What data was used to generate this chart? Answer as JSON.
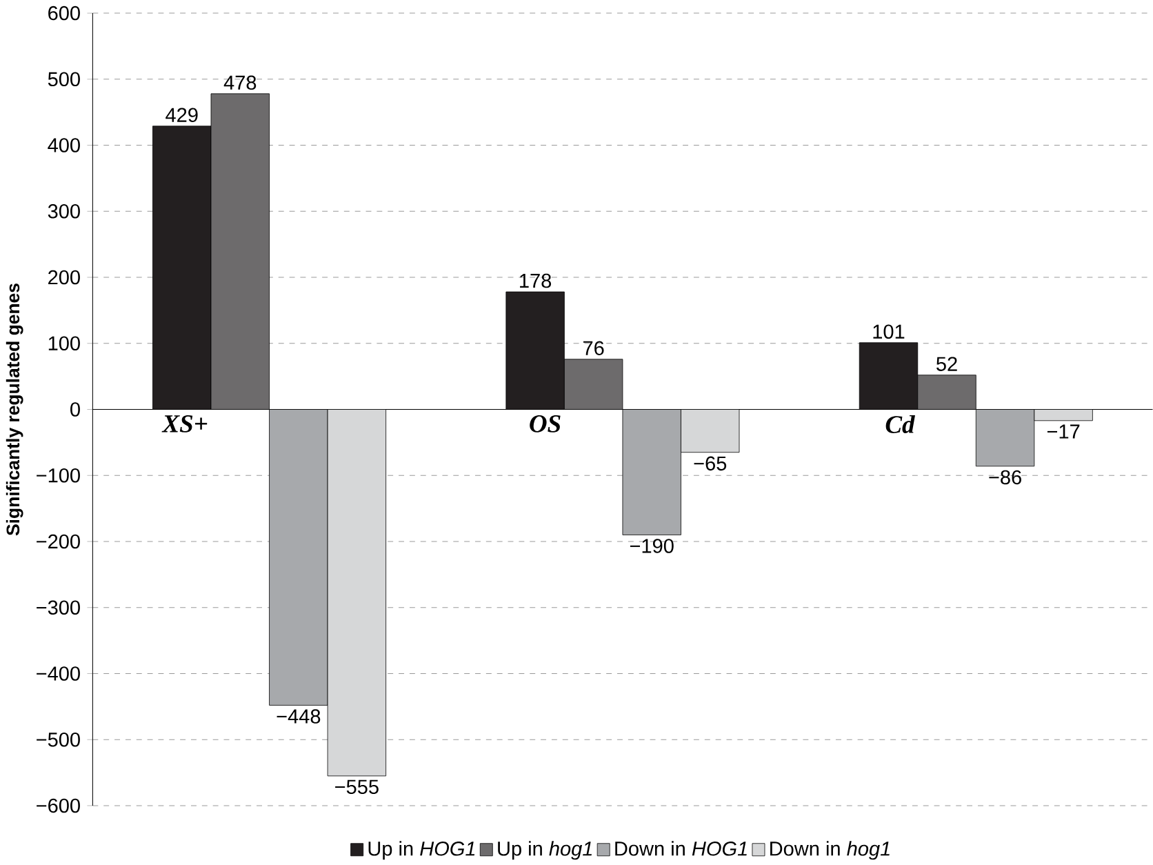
{
  "chart_data": {
    "type": "bar",
    "ylabel": "Significantly regulated genes",
    "categories": [
      "XS+",
      "OS",
      "Cd"
    ],
    "series": [
      {
        "name": "Up in *HOG1*",
        "color": "#231f20",
        "values": [
          429,
          178,
          101
        ],
        "value_labels": [
          "429",
          "178",
          "101"
        ]
      },
      {
        "name": "Up in *hog1*",
        "color": "#6d6b6c",
        "values": [
          478,
          76,
          52
        ],
        "value_labels": [
          "478",
          "76",
          "52"
        ]
      },
      {
        "name": "Down in *HOG1*",
        "color": "#a7a9ac",
        "values": [
          -448,
          -190,
          -86
        ],
        "value_labels": [
          "−448",
          "−190",
          "−86"
        ]
      },
      {
        "name": "Down in *hog1*",
        "color": "#d6d7d8",
        "values": [
          -555,
          -65,
          -17
        ],
        "value_labels": [
          "−555",
          "−65",
          "−17"
        ]
      }
    ],
    "ylim": [
      -600,
      600
    ],
    "yticks": [
      {
        "value": -600,
        "label": "−600"
      },
      {
        "value": -500,
        "label": "−500"
      },
      {
        "value": -400,
        "label": "−400"
      },
      {
        "value": -300,
        "label": "−300"
      },
      {
        "value": -200,
        "label": "−200"
      },
      {
        "value": -100,
        "label": "−100"
      },
      0,
      100,
      200,
      300,
      400,
      500,
      600
    ],
    "grid": "y",
    "legend": "bottom"
  }
}
